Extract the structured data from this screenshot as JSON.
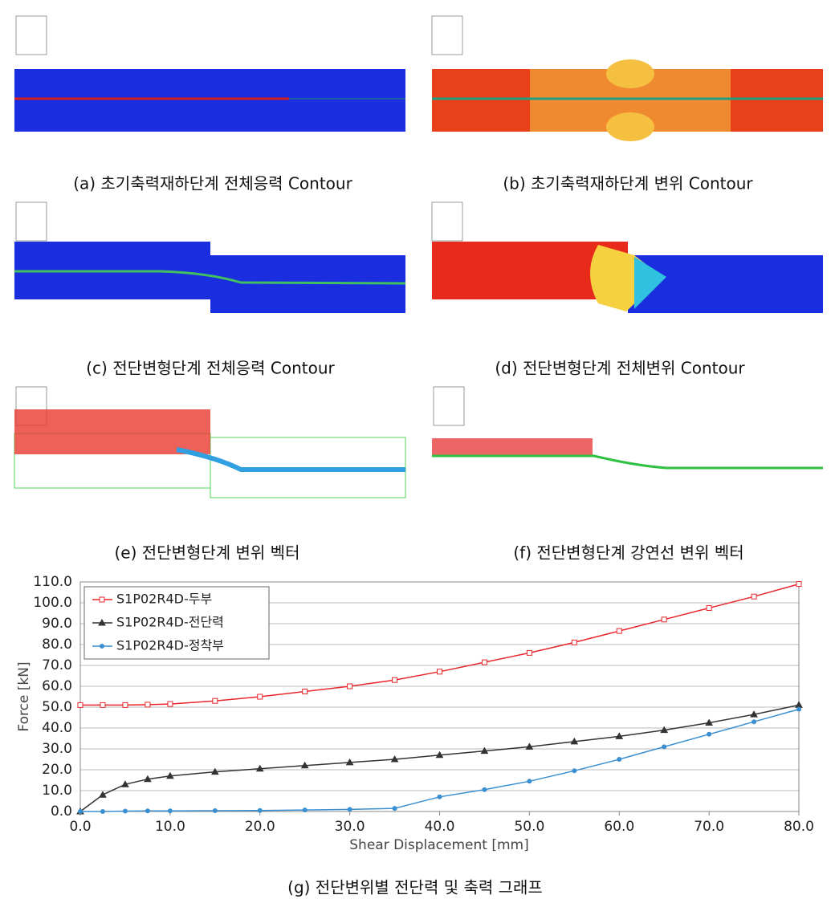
{
  "panels": [
    {
      "caption": "(a) 초기축력재하단계 전체응력 Contour"
    },
    {
      "caption": "(b) 초기축력재하단계 변위 Contour"
    },
    {
      "caption": "(c) 전단변형단계 전체응력 Contour"
    },
    {
      "caption": "(d) 전단변형단계 전체변위 Contour"
    },
    {
      "caption": "(e) 전단변형단계 변위 벡터"
    },
    {
      "caption": "(f) 전단변형단계 강연선 변위 벡터"
    }
  ],
  "chart_data": {
    "type": "line",
    "x_label": "Shear Displacement [mm]",
    "y_label": "Force [kN]",
    "x": [
      0,
      2.5,
      5,
      7.5,
      10,
      15,
      20,
      25,
      30,
      35,
      40,
      45,
      50,
      55,
      60,
      65,
      70,
      75,
      80
    ],
    "series": [
      {
        "name": "S1P02R4D-두부",
        "color": "#e8262b",
        "marker": "square",
        "values": [
          51,
          51,
          51,
          51.2,
          51.5,
          53,
          55,
          57.5,
          60,
          63,
          67,
          71.5,
          76,
          81,
          86.5,
          92,
          97.5,
          103,
          109
        ]
      },
      {
        "name": "S1P02R4D-전단력",
        "color": "#333333",
        "marker": "triangle",
        "values": [
          0,
          8,
          13,
          15.5,
          17,
          19,
          20.5,
          22,
          23.5,
          25,
          27,
          29,
          31,
          33.5,
          36,
          39,
          42.5,
          46.5,
          51
        ]
      },
      {
        "name": "S1P02R4D-정착부",
        "color": "#3a8fd0",
        "marker": "circle",
        "values": [
          0,
          0,
          0.2,
          0.3,
          0.3,
          0.4,
          0.5,
          0.7,
          1,
          1.5,
          7,
          10.5,
          14.5,
          19.5,
          25,
          31,
          37,
          43,
          49
        ]
      }
    ],
    "xlim": [
      0,
      80
    ],
    "ylim": [
      0,
      110
    ],
    "xticks": [
      {
        "value": 0,
        "label": "0.0"
      },
      {
        "value": 10,
        "label": "10.0"
      },
      {
        "value": 20,
        "label": "20.0"
      },
      {
        "value": 30,
        "label": "30.0"
      },
      {
        "value": 40,
        "label": "40.0"
      },
      {
        "value": 50,
        "label": "50.0"
      },
      {
        "value": 60,
        "label": "60.0"
      },
      {
        "value": 70,
        "label": "70.0"
      },
      {
        "value": 80,
        "label": "80.0"
      }
    ],
    "yticks": [
      {
        "value": 0,
        "label": "0.0"
      },
      {
        "value": 10,
        "label": "10.0"
      },
      {
        "value": 20,
        "label": "20.0"
      },
      {
        "value": 30,
        "label": "30.0"
      },
      {
        "value": 40,
        "label": "40.0"
      },
      {
        "value": 50,
        "label": "50.0"
      },
      {
        "value": 60,
        "label": "60.0"
      },
      {
        "value": 70,
        "label": "70.0"
      },
      {
        "value": 80,
        "label": "80.0"
      },
      {
        "value": 90,
        "label": "90.0"
      },
      {
        "value": 100,
        "label": "100.0"
      },
      {
        "value": 110,
        "label": "110.0"
      }
    ],
    "grid": true,
    "legend": "upper-left"
  },
  "chart_caption": "(g) 전단변위별 전단력 및 축력 그래프"
}
